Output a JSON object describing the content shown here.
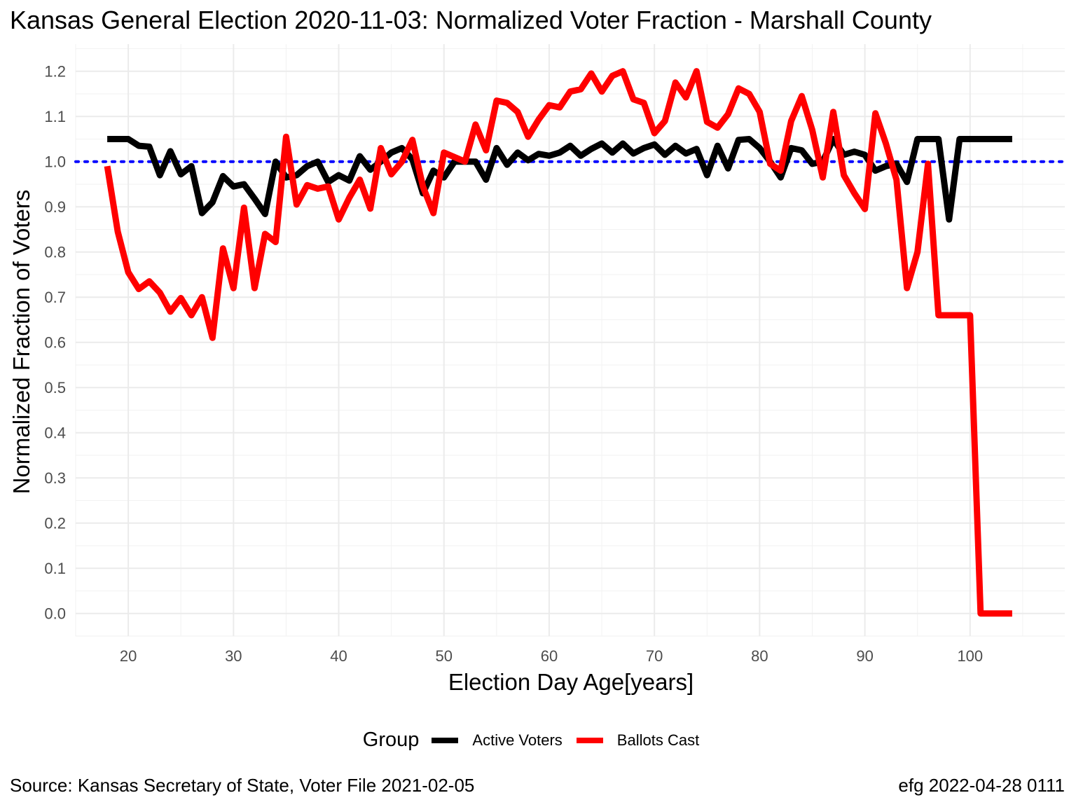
{
  "title": "Kansas General Election 2020-11-03:  Normalized Voter Fraction - Marshall County",
  "caption_left": "Source:  Kansas Secretary of State, Voter File  2021-02-05",
  "caption_right": "efg 2022-04-28 0111",
  "chart_data": {
    "type": "line",
    "xlabel": "Election Day Age[years]",
    "ylabel": "Normalized Fraction of Voters",
    "xlim": [
      15,
      109
    ],
    "ylim": [
      -0.05,
      1.26
    ],
    "x_ticks": [
      20,
      30,
      40,
      50,
      60,
      70,
      80,
      90,
      100
    ],
    "x_tick_labels": [
      "20",
      "30",
      "40",
      "50",
      "60",
      "70",
      "80",
      "90",
      "100"
    ],
    "y_ticks": [
      0.0,
      0.1,
      0.2,
      0.3,
      0.4,
      0.5,
      0.6,
      0.7,
      0.8,
      0.9,
      1.0,
      1.1,
      1.2
    ],
    "y_tick_labels": [
      "0.0",
      "0.1",
      "0.2",
      "0.3",
      "0.4",
      "0.5",
      "0.6",
      "0.7",
      "0.8",
      "0.9",
      "1.0",
      "1.1",
      "1.2"
    ],
    "grid": true,
    "reference_line": {
      "y": 1.0,
      "color": "#0000ff",
      "style": "dotted"
    },
    "legend": {
      "title": "Group",
      "position": "bottom"
    },
    "series": [
      {
        "name": "Active Voters",
        "color": "#000000",
        "x": [
          18,
          19,
          20,
          21,
          22,
          23,
          24,
          25,
          26,
          27,
          28,
          29,
          30,
          31,
          32,
          33,
          34,
          35,
          36,
          37,
          38,
          39,
          40,
          41,
          42,
          43,
          44,
          45,
          46,
          47,
          48,
          49,
          50,
          51,
          52,
          53,
          54,
          55,
          56,
          57,
          58,
          59,
          60,
          61,
          62,
          63,
          64,
          65,
          66,
          67,
          68,
          69,
          70,
          71,
          72,
          73,
          74,
          75,
          76,
          77,
          78,
          79,
          80,
          81,
          82,
          83,
          84,
          85,
          86,
          87,
          88,
          89,
          90,
          91,
          92,
          93,
          94,
          95,
          96,
          97,
          98,
          99,
          100,
          101,
          102,
          103,
          104
        ],
        "y": [
          1.05,
          1.05,
          1.05,
          1.035,
          1.033,
          0.97,
          1.023,
          0.972,
          0.99,
          0.886,
          0.91,
          0.968,
          0.945,
          0.95,
          0.918,
          0.884,
          1.0,
          0.965,
          0.97,
          0.99,
          1.0,
          0.955,
          0.97,
          0.958,
          1.012,
          0.982,
          1.0,
          1.02,
          1.03,
          1.005,
          0.93,
          0.98,
          0.965,
          1.0,
          1.0,
          1.0,
          0.96,
          1.03,
          0.993,
          1.02,
          1.003,
          1.017,
          1.013,
          1.02,
          1.035,
          1.013,
          1.028,
          1.04,
          1.02,
          1.04,
          1.018,
          1.03,
          1.038,
          1.015,
          1.035,
          1.018,
          1.028,
          0.97,
          1.035,
          0.985,
          1.048,
          1.05,
          1.03,
          1.0,
          0.965,
          1.03,
          1.025,
          0.995,
          1.0,
          1.05,
          1.015,
          1.022,
          1.015,
          0.98,
          0.99,
          0.995,
          0.955,
          1.05,
          1.05,
          1.05,
          0.872,
          1.05,
          1.05,
          1.05,
          1.05,
          1.05,
          1.05
        ]
      },
      {
        "name": "Ballots Cast",
        "color": "#ff0000",
        "x": [
          18,
          19,
          20,
          21,
          22,
          23,
          24,
          25,
          26,
          27,
          28,
          29,
          30,
          31,
          32,
          33,
          34,
          35,
          36,
          37,
          38,
          39,
          40,
          41,
          42,
          43,
          44,
          45,
          46,
          47,
          48,
          49,
          50,
          51,
          52,
          53,
          54,
          55,
          56,
          57,
          58,
          59,
          60,
          61,
          62,
          63,
          64,
          65,
          66,
          67,
          68,
          69,
          70,
          71,
          72,
          73,
          74,
          75,
          76,
          77,
          78,
          79,
          80,
          81,
          82,
          83,
          84,
          85,
          86,
          87,
          88,
          89,
          90,
          91,
          92,
          93,
          94,
          95,
          96,
          97,
          98,
          99,
          100,
          101,
          102,
          103,
          104
        ],
        "y": [
          0.99,
          0.845,
          0.755,
          0.718,
          0.735,
          0.71,
          0.668,
          0.698,
          0.66,
          0.7,
          0.61,
          0.808,
          0.72,
          0.898,
          0.72,
          0.84,
          0.822,
          1.055,
          0.905,
          0.948,
          0.94,
          0.945,
          0.872,
          0.92,
          0.96,
          0.896,
          1.03,
          0.972,
          1.0,
          1.048,
          0.945,
          0.886,
          1.02,
          1.01,
          1.0,
          1.082,
          1.025,
          1.135,
          1.13,
          1.11,
          1.055,
          1.093,
          1.125,
          1.12,
          1.155,
          1.16,
          1.195,
          1.155,
          1.19,
          1.2,
          1.138,
          1.13,
          1.063,
          1.09,
          1.175,
          1.142,
          1.2,
          1.088,
          1.075,
          1.105,
          1.162,
          1.15,
          1.11,
          0.995,
          0.98,
          1.09,
          1.145,
          1.07,
          0.965,
          1.11,
          0.97,
          0.93,
          0.895,
          1.107,
          1.04,
          0.96,
          0.72,
          0.8,
          0.995,
          0.66,
          0.66,
          0.66,
          0.66,
          0.0,
          0.0,
          0.0,
          0.0
        ]
      }
    ]
  }
}
